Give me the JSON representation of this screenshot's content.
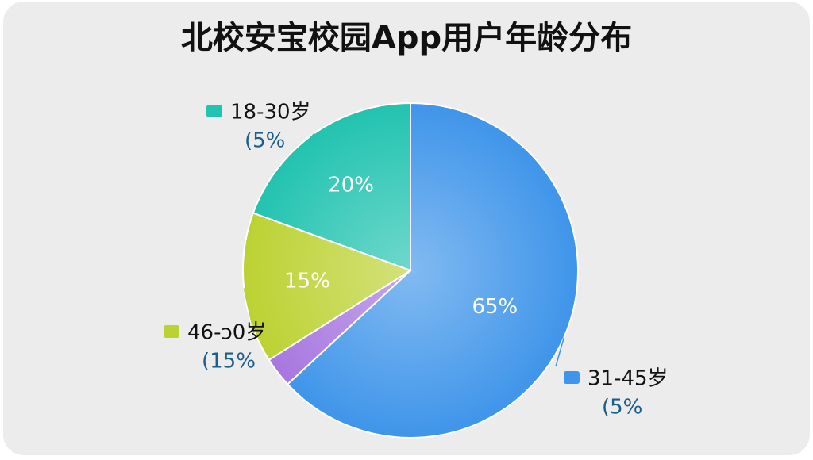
{
  "chart_data": {
    "type": "pie",
    "title": "北校安宝校园App用户年龄分布",
    "categories": [
      "31-45岁",
      null,
      "46-ɔ0岁",
      "18-30岁"
    ],
    "notes": [
      "(5%",
      null,
      "(15%",
      "(5%"
    ],
    "values": [
      65,
      3,
      15,
      20
    ],
    "value_labels": [
      "65%",
      null,
      "15%",
      "20%"
    ],
    "colors": [
      "#3f95ea",
      "#a777e0",
      "#bcd233",
      "#22c3b0"
    ]
  }
}
